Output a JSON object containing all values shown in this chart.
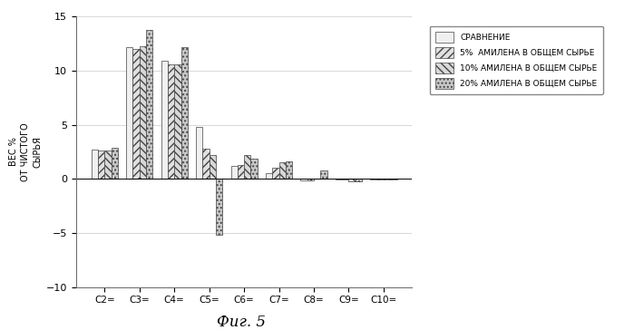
{
  "categories": [
    "C2=",
    "C3=",
    "C4=",
    "C5=",
    "C6=",
    "C7=",
    "C8=",
    "C9=",
    "C10="
  ],
  "series": {
    "СРАВНЕНИЕ": [
      2.7,
      12.2,
      10.9,
      4.8,
      1.2,
      0.55,
      -0.15,
      -0.1,
      -0.1
    ],
    "5%  АМИЛЕНА В ОБЩЕМ СЫРЬЕ": [
      2.65,
      12.0,
      10.6,
      2.8,
      1.3,
      1.0,
      -0.15,
      -0.1,
      -0.1
    ],
    "10% АМИЛЕНА В ОБЩЕМ СЫРЬЕ": [
      2.65,
      12.25,
      10.55,
      2.2,
      2.2,
      1.5,
      0.0,
      -0.2,
      -0.1
    ],
    "20% АМИЛЕНА В ОБЩЕМ СЫРЬЕ": [
      2.9,
      13.8,
      12.2,
      -5.2,
      1.85,
      1.6,
      0.75,
      -0.2,
      -0.1
    ]
  },
  "series_order": [
    "СРАВНЕНИЕ",
    "5%  АМИЛЕНА В ОБЩЕМ СЫРЬЕ",
    "10% АМИЛЕНА В ОБЩЕМ СЫРЬЕ",
    "20% АМИЛЕНА В ОБЩЕМ СЫРЬЕ"
  ],
  "colors": [
    "#f0f0f0",
    "#e0e0e0",
    "#d8d8d8",
    "#c8c8c8"
  ],
  "hatches": [
    "",
    "////",
    "\\\\\\\\",
    "...."
  ],
  "ylabel": "ВЕС %\nОТ ЧИСТОГО\nСЫРЬЯ",
  "ylim": [
    -10,
    15
  ],
  "yticks": [
    -10,
    -5,
    0,
    5,
    10,
    15
  ],
  "legend_labels": [
    "СРАВНЕНИЕ",
    "5%  АМИЛЕНА В ОБЩЕМ СЫРЬЕ",
    "10% АМИЛЕНА В ОБЩЕМ СЫРЬЕ",
    "20% АМИЛЕНА В ОБЩЕМ СЫРЬЕ"
  ],
  "fig_caption": "Фиг. 5",
  "background_color": "#ffffff",
  "bar_edge_color": "#444444",
  "bar_width": 0.19
}
